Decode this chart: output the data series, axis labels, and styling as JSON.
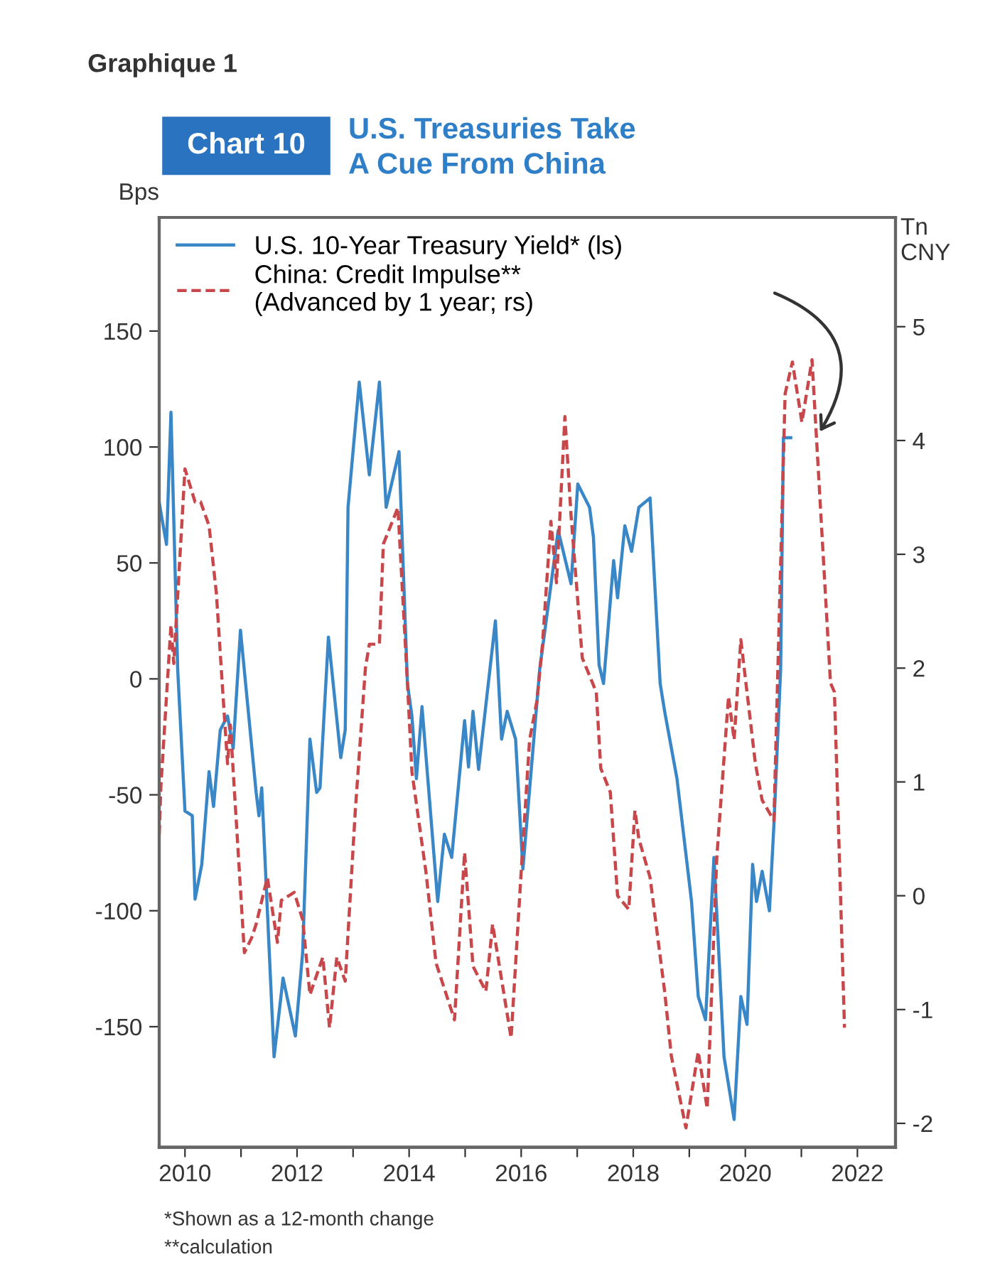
{
  "chart_data": {
    "type": "line",
    "title": "U.S. Treasuries Take\nA Cue From China",
    "ylabel": "Bps",
    "y2label": "Tn\nCNY",
    "annotations": [
      "Graphique 1",
      "Chart 10",
      "*Shown as a 12-month change",
      "**calculation"
    ],
    "series": [
      {
        "name": "U.S. 10-Year Treasury Yield* (ls)",
        "color": "#3a87c8",
        "line_style": "solid",
        "axis": "y",
        "x": [
          2009.54,
          2009.67,
          2009.75,
          2009.87,
          2010.0,
          2010.13,
          2010.18,
          2010.3,
          2010.43,
          2010.51,
          2010.63,
          2010.76,
          2010.86,
          2010.99,
          2011.27,
          2011.32,
          2011.37,
          2011.59,
          2011.75,
          2011.97,
          2012.1,
          2012.23,
          2012.35,
          2012.41,
          2012.56,
          2012.78,
          2012.86,
          2012.91,
          2013.11,
          2013.29,
          2013.47,
          2013.59,
          2013.82,
          2013.97,
          2014.05,
          2014.13,
          2014.23,
          2014.51,
          2014.63,
          2014.76,
          2014.99,
          2015.06,
          2015.14,
          2015.24,
          2015.54,
          2015.65,
          2015.75,
          2015.9,
          2016.03,
          2016.33,
          2016.66,
          2016.89,
          2017.01,
          2017.22,
          2017.29,
          2017.39,
          2017.47,
          2017.65,
          2017.72,
          2017.85,
          2017.97,
          2018.1,
          2018.3,
          2018.48,
          2018.56,
          2018.78,
          2019.04,
          2019.16,
          2019.29,
          2019.44,
          2019.62,
          2019.8,
          2019.92,
          2020.03,
          2020.13,
          2020.2,
          2020.3,
          2020.43,
          2020.51,
          2020.63,
          2020.68,
          2020.81
        ],
        "values": [
          76,
          58,
          115,
          4,
          -57,
          -59,
          -95,
          -80,
          -40,
          -55,
          -22,
          -16,
          -30,
          21,
          -49,
          -59,
          -47,
          -163,
          -129,
          -154,
          -118,
          -26,
          -49,
          -47,
          18,
          -34,
          -22,
          74,
          128,
          88,
          128,
          74,
          98,
          -2,
          -16,
          -43,
          -12,
          -96,
          -67,
          -77,
          -18,
          -38,
          -14,
          -39,
          25,
          -26,
          -14,
          -26,
          -82,
          4,
          64,
          41,
          84,
          74,
          61,
          6,
          -2,
          51,
          35,
          66,
          55,
          74,
          78,
          -2,
          -14,
          -43,
          -96,
          -137,
          -147,
          -77,
          -163,
          -190,
          -137,
          -149,
          -80,
          -96,
          -83,
          -100,
          -63,
          4,
          104,
          104
        ]
      },
      {
        "name": "China: Credit Impulse**\n(Advanced by 1 year; rs)",
        "color": "#c8474a",
        "line_style": "dashed",
        "axis": "y2",
        "x": [
          2009.54,
          2009.57,
          2009.75,
          2009.8,
          2010.0,
          2010.18,
          2010.28,
          2010.43,
          2010.56,
          2010.68,
          2010.76,
          2010.81,
          2011.06,
          2011.19,
          2011.27,
          2011.47,
          2011.65,
          2011.72,
          2011.95,
          2012.1,
          2012.23,
          2012.46,
          2012.58,
          2012.71,
          2012.86,
          2013.04,
          2013.22,
          2013.29,
          2013.47,
          2013.54,
          2013.8,
          2013.97,
          2014.05,
          2014.3,
          2014.48,
          2014.81,
          2014.99,
          2015.14,
          2015.37,
          2015.49,
          2015.82,
          2016.0,
          2016.15,
          2016.28,
          2016.38,
          2016.53,
          2016.63,
          2016.78,
          2016.89,
          2017.09,
          2017.34,
          2017.42,
          2017.59,
          2017.72,
          2017.92,
          2018.03,
          2018.1,
          2018.3,
          2018.56,
          2018.68,
          2018.94,
          2019.16,
          2019.32,
          2019.49,
          2019.7,
          2019.8,
          2019.92,
          2020.18,
          2020.3,
          2020.51,
          2020.71,
          2020.84,
          2021.01,
          2021.19,
          2021.52,
          2021.59,
          2021.77
        ],
        "values": [
          0.54,
          0.96,
          2.38,
          2.04,
          3.75,
          3.46,
          3.46,
          3.25,
          2.66,
          1.75,
          1.16,
          1.5,
          -0.5,
          -0.37,
          -0.25,
          0.16,
          -0.41,
          -0.04,
          0.03,
          -0.21,
          -0.87,
          -0.54,
          -1.16,
          -0.54,
          -0.75,
          0.75,
          2.0,
          2.21,
          2.21,
          3.09,
          3.41,
          1.87,
          1.09,
          0.21,
          -0.59,
          -1.09,
          0.38,
          -0.62,
          -0.84,
          -0.25,
          -1.25,
          0.21,
          1.37,
          1.71,
          2.21,
          3.29,
          2.75,
          4.21,
          3.34,
          2.09,
          1.79,
          1.12,
          0.91,
          0.0,
          -0.12,
          0.75,
          0.5,
          0.16,
          -0.84,
          -1.41,
          -2.04,
          -1.37,
          -1.87,
          0.33,
          1.75,
          1.37,
          2.25,
          1.16,
          0.84,
          0.66,
          4.41,
          4.69,
          4.16,
          4.71,
          1.87,
          1.79,
          -1.16
        ]
      }
    ],
    "xlim": [
      2009.54,
      2022.68
    ],
    "xticks": [
      2010,
      {
        "value": 2011,
        "label": null
      },
      2012,
      {
        "value": 2013,
        "label": null
      },
      2014,
      {
        "value": 2015,
        "label": null
      },
      2016,
      {
        "value": 2017,
        "label": null
      },
      2018,
      {
        "value": 2019,
        "label": null
      },
      2020,
      {
        "value": 2021,
        "label": null
      },
      2022
    ],
    "ylim": [
      -202,
      199
    ],
    "yticks": [
      -150,
      -100,
      -50,
      0,
      50,
      100,
      150
    ],
    "y2lim": [
      -2.21,
      5.96
    ],
    "y2ticks": [
      -2,
      -1,
      0,
      1,
      2,
      3,
      4,
      5
    ],
    "legend": "top left",
    "grid": false
  }
}
